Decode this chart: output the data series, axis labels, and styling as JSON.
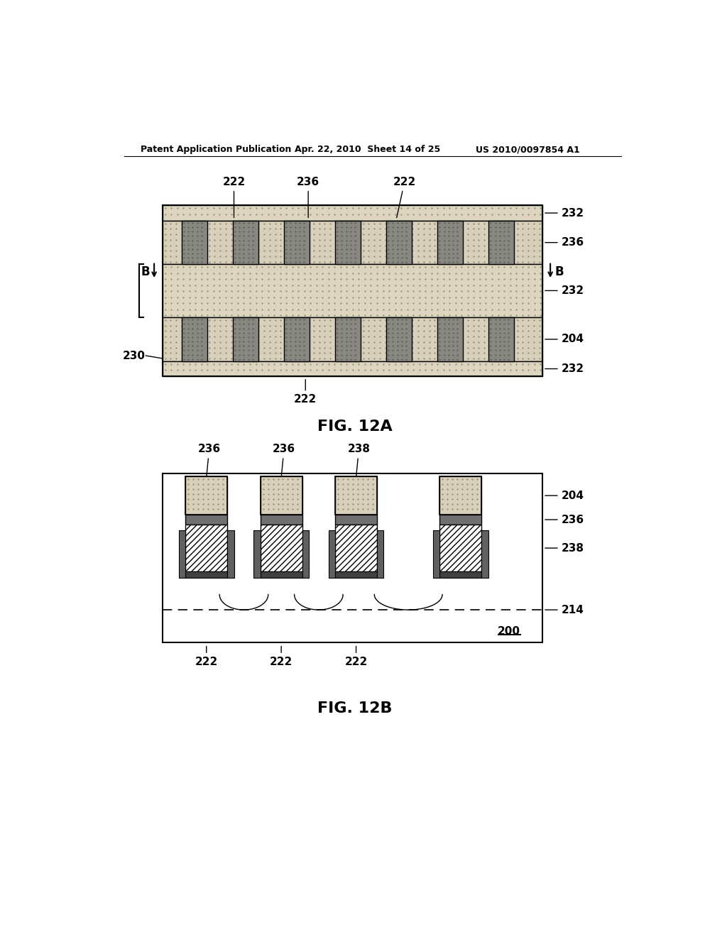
{
  "bg_color": "#ffffff",
  "header_text": "Patent Application Publication",
  "header_date": "Apr. 22, 2010  Sheet 14 of 25",
  "header_patent": "US 2010/0097854 A1",
  "fig12a_label": "FIG. 12A",
  "fig12b_label": "FIG. 12B",
  "dot_pattern_color": "#d0c8b0",
  "dark_gray": "#808080",
  "medium_gray": "#a0a0a0",
  "light_dot_color": "#e8e0cc",
  "hatch_color": "#606060",
  "line_color": "#000000",
  "dashed_color": "#000000"
}
